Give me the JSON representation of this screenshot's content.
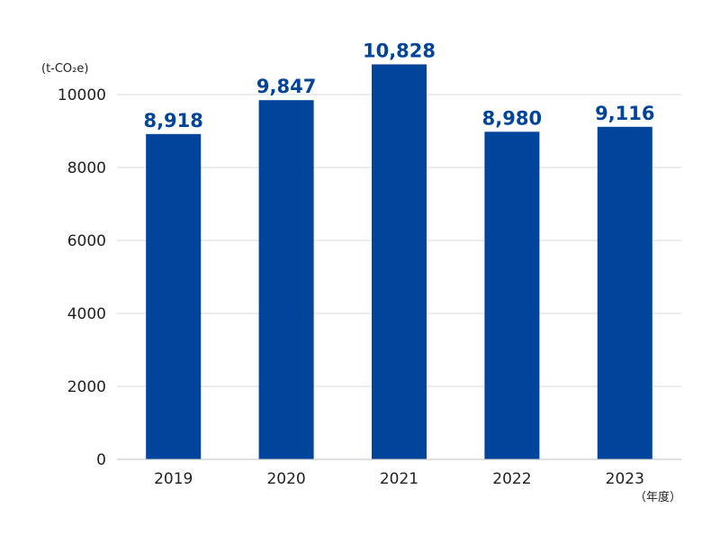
{
  "chart_data": {
    "type": "bar",
    "categories": [
      "2019",
      "2020",
      "2021",
      "2022",
      "2023"
    ],
    "series": [
      {
        "values": [
          8918,
          9847,
          10828,
          8980,
          9116
        ]
      }
    ],
    "data_labels": [
      "8,918",
      "9,847",
      "10,828",
      "8,980",
      "9,116"
    ],
    "y_unit_label": "(t-CO₂e)",
    "x_unit_label": "（年度）",
    "ylim": [
      0,
      10000
    ],
    "yticks": [
      0,
      2000,
      4000,
      6000,
      8000,
      10000
    ],
    "grid": true,
    "legend": "none",
    "colors": {
      "bar": "#00449b",
      "data_label": "#00449b",
      "grid": "#d9d9d9"
    }
  }
}
